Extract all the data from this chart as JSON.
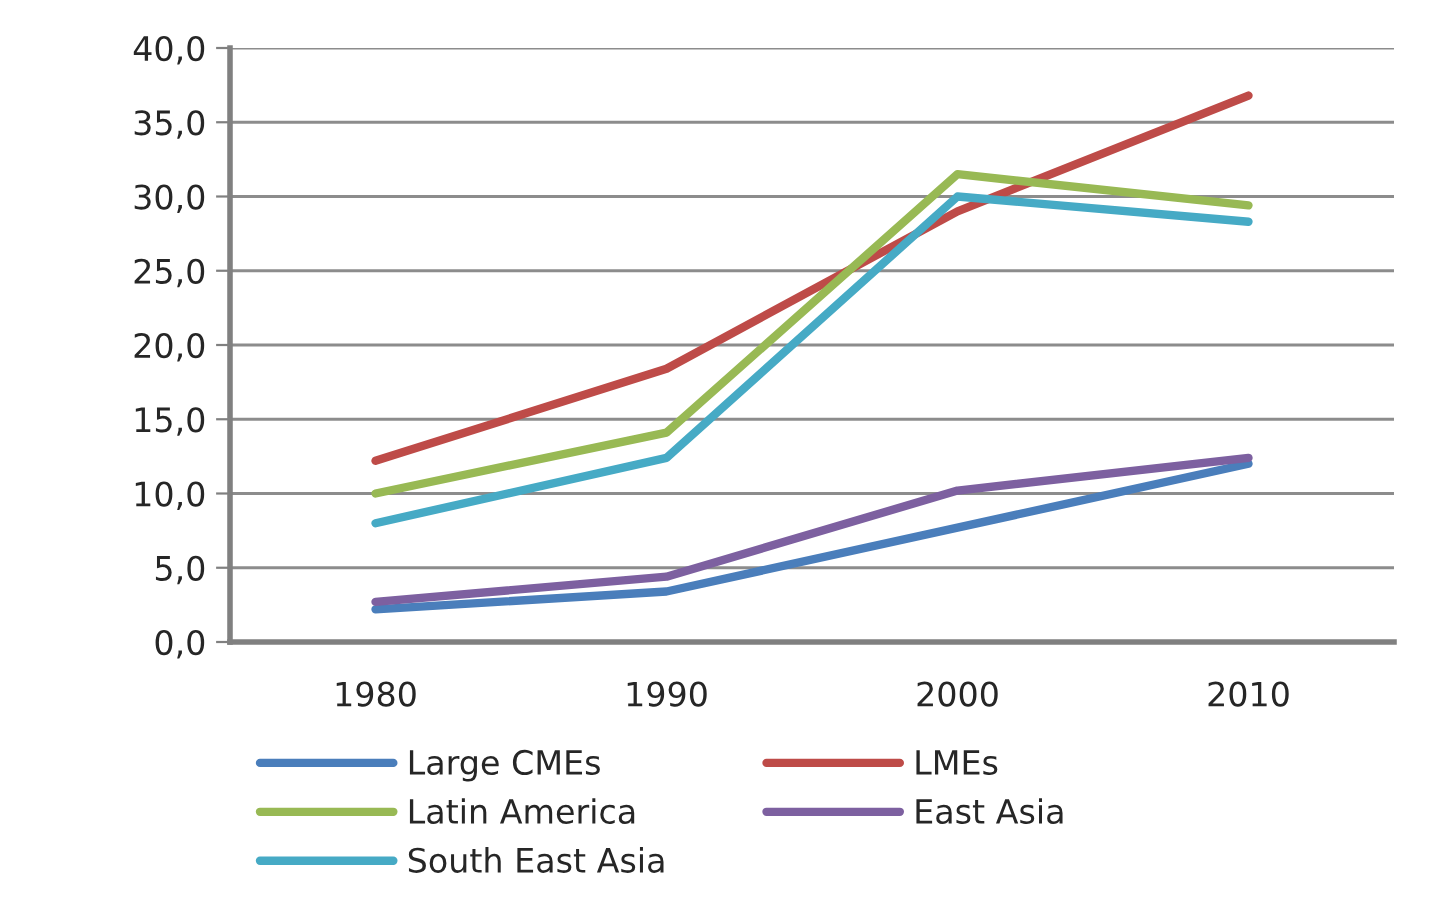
{
  "chart_data": {
    "type": "line",
    "categories": [
      "1980",
      "1990",
      "2000",
      "2010"
    ],
    "series": [
      {
        "name": "Large CMEs",
        "color": "#4a7ebb",
        "values": [
          2.2,
          3.4,
          7.7,
          12.0
        ]
      },
      {
        "name": "LMEs",
        "color": "#be4b48",
        "values": [
          12.2,
          18.4,
          29.0,
          36.8
        ]
      },
      {
        "name": "Latin America",
        "color": "#98b954",
        "values": [
          10.0,
          14.1,
          31.5,
          29.4
        ]
      },
      {
        "name": "East Asia",
        "color": "#7d60a0",
        "values": [
          2.7,
          4.4,
          10.2,
          12.4
        ]
      },
      {
        "name": "South East Asia",
        "color": "#46aac5",
        "values": [
          8.0,
          12.4,
          30.0,
          28.3
        ]
      }
    ],
    "ylim": [
      0,
      40
    ],
    "yticks": [
      {
        "value": 0,
        "label": "0,0"
      },
      {
        "value": 5,
        "label": "5,0"
      },
      {
        "value": 10,
        "label": "10,0"
      },
      {
        "value": 15,
        "label": "15,0"
      },
      {
        "value": 20,
        "label": "20,0"
      },
      {
        "value": 25,
        "label": "25,0"
      },
      {
        "value": 30,
        "label": "30,0"
      },
      {
        "value": 35,
        "label": "35,0"
      },
      {
        "value": 40,
        "label": "40,0"
      }
    ],
    "grid": "y",
    "legend": "bottom left",
    "marker": "none",
    "line_style": "solid"
  }
}
